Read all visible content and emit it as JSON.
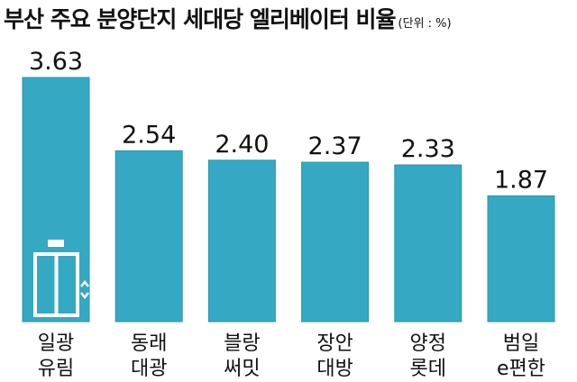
{
  "title": "부산 주요 분양단지 세대당 엘리베이터 비율",
  "unit": "(단위 : %)",
  "colors": {
    "bar": "#35a8c3",
    "bar_edge": "#2a94ad",
    "icon": "#ffffff",
    "text": "#111111"
  },
  "chart_data": {
    "type": "bar",
    "title": "부산 주요 분양단지 세대당 엘리베이터 비율",
    "unit": "%",
    "categories": [
      [
        "일광",
        "유림"
      ],
      [
        "동래",
        "대광"
      ],
      [
        "블랑",
        "써밋"
      ],
      [
        "장안",
        "대방"
      ],
      [
        "양정",
        "롯데"
      ],
      [
        "범일",
        "e편한"
      ]
    ],
    "values": [
      3.63,
      2.54,
      2.4,
      2.37,
      2.33,
      1.87
    ],
    "value_labels": [
      "3.63",
      "2.54",
      "2.40",
      "2.37",
      "2.33",
      "1.87"
    ],
    "ylim": [
      0,
      3.63
    ],
    "grid": false,
    "legend": "none",
    "first_bar_icon": "elevator-icon"
  }
}
